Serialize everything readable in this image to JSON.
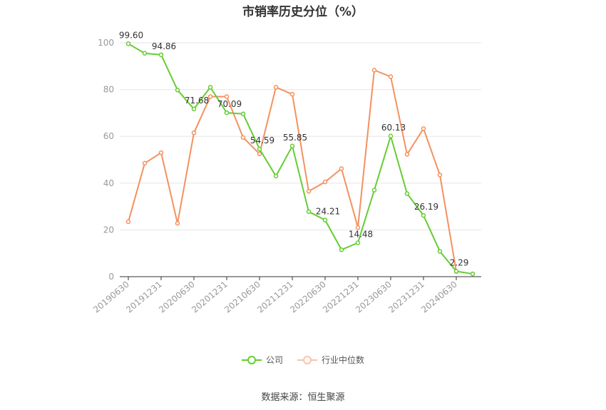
{
  "title": "市销率历史分位（%）",
  "source": "数据来源：恒生聚源",
  "colors": {
    "company": "#66cc33",
    "industry": "#f4915f",
    "grid": "#e6e6e6",
    "axis": "#333333",
    "tick": "#999999"
  },
  "chart_data": {
    "type": "line",
    "title": "市销率历史分位（%）",
    "x": [
      "20190630",
      "20190930",
      "20191231",
      "20200331",
      "20200630",
      "20200930",
      "20201231",
      "20210331",
      "20210630",
      "20210930",
      "20211231",
      "20220331",
      "20220630",
      "20220930",
      "20221231",
      "20230331",
      "20230630",
      "20230930",
      "20231231",
      "20240331",
      "20240630",
      "20240930"
    ],
    "x_tick_labels": [
      "20190630",
      "20191231",
      "20200630",
      "20201231",
      "20210630",
      "20211231",
      "20220630",
      "20221231",
      "20230630",
      "20231231",
      "20240630"
    ],
    "ylim": [
      0,
      100
    ],
    "y_ticks": [
      0,
      20,
      40,
      60,
      80,
      100
    ],
    "grid": true,
    "legend_position": "bottom",
    "series": [
      {
        "name": "公司",
        "values": [
          99.6,
          95.5,
          94.86,
          79.8,
          71.68,
          81.0,
          70.09,
          69.6,
          54.59,
          43.0,
          55.85,
          27.8,
          24.21,
          11.5,
          14.48,
          37.0,
          60.13,
          35.5,
          26.19,
          10.8,
          2.29,
          1.2
        ],
        "data_labels": {
          "0": "99.60",
          "2": "94.86",
          "4": "71.68",
          "6": "70.09",
          "8": "54.59",
          "10": "55.85",
          "12": "24.21",
          "14": "14.48",
          "16": "60.13",
          "18": "26.19",
          "20": "2.29"
        }
      },
      {
        "name": "行业中位数",
        "values": [
          23.5,
          48.5,
          53.0,
          22.8,
          61.5,
          77.0,
          77.0,
          59.5,
          52.5,
          81.0,
          78.0,
          36.5,
          40.5,
          46.2,
          21.0,
          88.3,
          85.5,
          52.3,
          63.3,
          43.5,
          2.2,
          null
        ]
      }
    ]
  }
}
